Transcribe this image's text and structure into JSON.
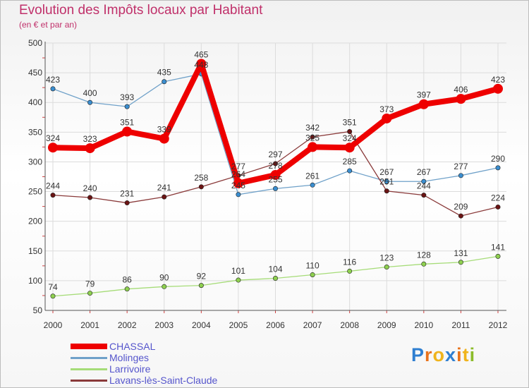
{
  "header": {
    "title": "Evolution des Impôts locaux par Habitant",
    "subtitle": "(en € et par an)"
  },
  "logo": {
    "letters": [
      "P",
      "r",
      "o",
      "x",
      "i",
      "t",
      "i"
    ],
    "colors": [
      "#2f7fd1",
      "#e8731c",
      "#f0b41c",
      "#2f7fd1",
      "#e8731c",
      "#f0b41c",
      "#8cbc2a"
    ]
  },
  "chart_data": {
    "type": "line",
    "title": "Evolution des Impôts locaux par Habitant",
    "subtitle": "(en € et par an)",
    "xlabel": "",
    "ylabel": "",
    "x": [
      "2000",
      "2001",
      "2002",
      "2003",
      "2004",
      "2005",
      "2006",
      "2007",
      "2008",
      "2009",
      "2010",
      "2011",
      "2012"
    ],
    "ylim": [
      50,
      500
    ],
    "yticks": [
      "50",
      "100",
      "150",
      "200",
      "250",
      "300",
      "350",
      "400",
      "450",
      "500"
    ],
    "grid": true,
    "legend_position": "bottom-left",
    "series": [
      {
        "name": "CHASSAL",
        "color": "#ee0000",
        "emphasis": true,
        "values": [
          324,
          323,
          351,
          339,
          465,
          264,
          278,
          325,
          324,
          373,
          397,
          406,
          423
        ]
      },
      {
        "name": "Molinges",
        "color": "#6fa1c9",
        "marker": "#3a8ed0",
        "values": [
          423,
          400,
          393,
          435,
          448,
          245,
          255,
          261,
          285,
          267,
          267,
          277,
          290
        ]
      },
      {
        "name": "Larrivoire",
        "color": "#a6dc78",
        "marker": "#8ed04f",
        "values": [
          74,
          79,
          86,
          90,
          92,
          101,
          104,
          110,
          116,
          123,
          128,
          131,
          141
        ]
      },
      {
        "name": "Lavans-lès-Saint-Claude",
        "color": "#8a3a3a",
        "marker": "#6b1414",
        "values": [
          244,
          240,
          231,
          241,
          258,
          277,
          297,
          342,
          351,
          251,
          244,
          209,
          224
        ]
      }
    ]
  }
}
